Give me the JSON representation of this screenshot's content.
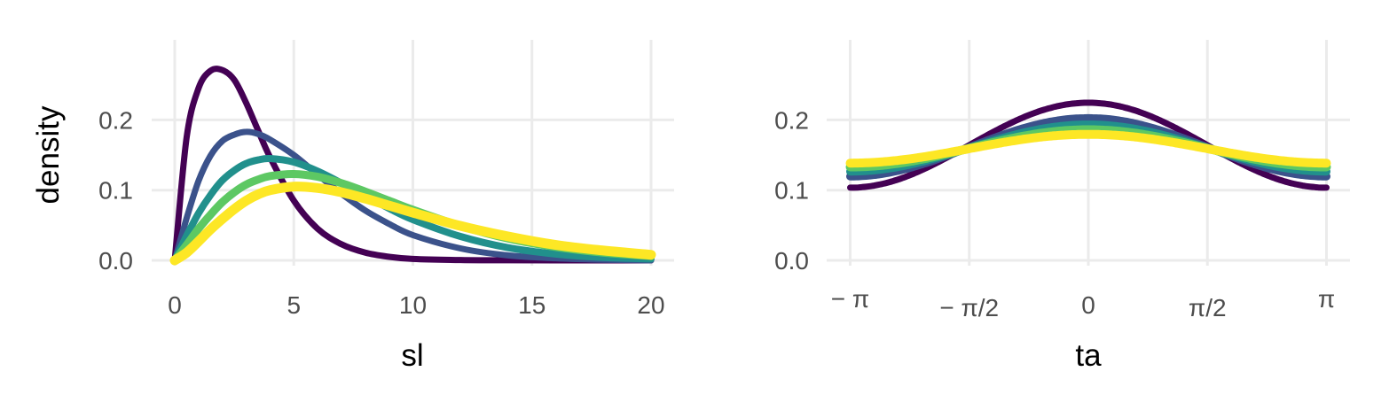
{
  "chart_data": [
    {
      "type": "line",
      "xlabel": "sl",
      "ylabel": "density",
      "xlim": [
        0,
        20
      ],
      "ylim": [
        0,
        0.3
      ],
      "x_ticks": [
        0,
        5,
        10,
        15,
        20
      ],
      "x_tick_labels": [
        "0",
        "5",
        "10",
        "15",
        "20"
      ],
      "y_ticks": [
        0,
        0.1,
        0.2
      ],
      "y_tick_labels": [
        "0.0",
        "0.1",
        "0.2"
      ],
      "grid": true,
      "legend": "none",
      "series": [
        {
          "color": "#440154",
          "x": [
            0,
            0.5,
            1,
            1.5,
            2,
            2.5,
            3,
            3.5,
            4,
            5,
            6,
            7,
            8,
            9,
            10,
            12,
            14,
            16,
            18,
            20
          ],
          "y": [
            0,
            0.175,
            0.245,
            0.27,
            0.271,
            0.257,
            0.224,
            0.185,
            0.147,
            0.085,
            0.045,
            0.023,
            0.011,
            0.005,
            0.002,
            0.0005,
            0.0001,
            0,
            0,
            0
          ]
        },
        {
          "color": "#3b528b",
          "x": [
            0,
            0.5,
            1,
            1.5,
            2,
            2.5,
            3,
            3.5,
            4,
            5,
            6,
            7,
            8,
            9,
            10,
            12,
            14,
            16,
            18,
            20
          ],
          "y": [
            0,
            0.06,
            0.113,
            0.149,
            0.17,
            0.179,
            0.183,
            0.18,
            0.172,
            0.15,
            0.122,
            0.095,
            0.071,
            0.052,
            0.036,
            0.017,
            0.007,
            0.003,
            0.001,
            0
          ]
        },
        {
          "color": "#21908c",
          "x": [
            0,
            0.5,
            1,
            1.5,
            2,
            2.5,
            3,
            3.5,
            4,
            5,
            6,
            7,
            8,
            9,
            10,
            12,
            14,
            16,
            18,
            20
          ],
          "y": [
            0,
            0.035,
            0.067,
            0.093,
            0.114,
            0.128,
            0.138,
            0.143,
            0.145,
            0.14,
            0.127,
            0.11,
            0.092,
            0.074,
            0.058,
            0.034,
            0.018,
            0.009,
            0.004,
            0.002
          ]
        },
        {
          "color": "#5dc863",
          "x": [
            0,
            0.5,
            1,
            1.5,
            2,
            2.5,
            3,
            3.5,
            4,
            5,
            6,
            7,
            8,
            9,
            10,
            12,
            14,
            16,
            18,
            20
          ],
          "y": [
            0,
            0.022,
            0.045,
            0.065,
            0.083,
            0.097,
            0.108,
            0.115,
            0.12,
            0.123,
            0.119,
            0.11,
            0.098,
            0.085,
            0.072,
            0.049,
            0.031,
            0.019,
            0.011,
            0.006
          ]
        },
        {
          "color": "#fde725",
          "x": [
            0,
            0.5,
            1,
            1.5,
            2,
            2.5,
            3,
            3.5,
            4,
            5,
            6,
            7,
            8,
            9,
            10,
            12,
            14,
            16,
            18,
            20
          ],
          "y": [
            0,
            0.011,
            0.027,
            0.044,
            0.059,
            0.073,
            0.085,
            0.094,
            0.1,
            0.105,
            0.103,
            0.097,
            0.088,
            0.078,
            0.068,
            0.049,
            0.034,
            0.022,
            0.014,
            0.008
          ]
        }
      ]
    },
    {
      "type": "line",
      "xlabel": "ta",
      "ylabel": "",
      "xlim": [
        -3.14159,
        3.14159
      ],
      "ylim": [
        0,
        0.3
      ],
      "x_ticks": [
        -3.14159,
        -1.5708,
        0,
        1.5708,
        3.14159
      ],
      "x_tick_labels": [
        "− π",
        "− π/2",
        "0",
        "π/2",
        "π"
      ],
      "y_ticks": [
        0,
        0.1,
        0.2
      ],
      "y_tick_labels": [
        "0.0",
        "0.1",
        "0.2"
      ],
      "grid": true,
      "legend": "none",
      "series": [
        {
          "color": "#440154",
          "center": 0.164,
          "amplitude": 0.0605
        },
        {
          "color": "#3b528b",
          "center": 0.161,
          "amplitude": 0.0415
        },
        {
          "color": "#21908c",
          "center": 0.16,
          "amplitude": 0.0335
        },
        {
          "color": "#5dc863",
          "center": 0.1595,
          "amplitude": 0.0265
        },
        {
          "color": "#fde725",
          "center": 0.159,
          "amplitude": 0.0205
        }
      ]
    }
  ]
}
